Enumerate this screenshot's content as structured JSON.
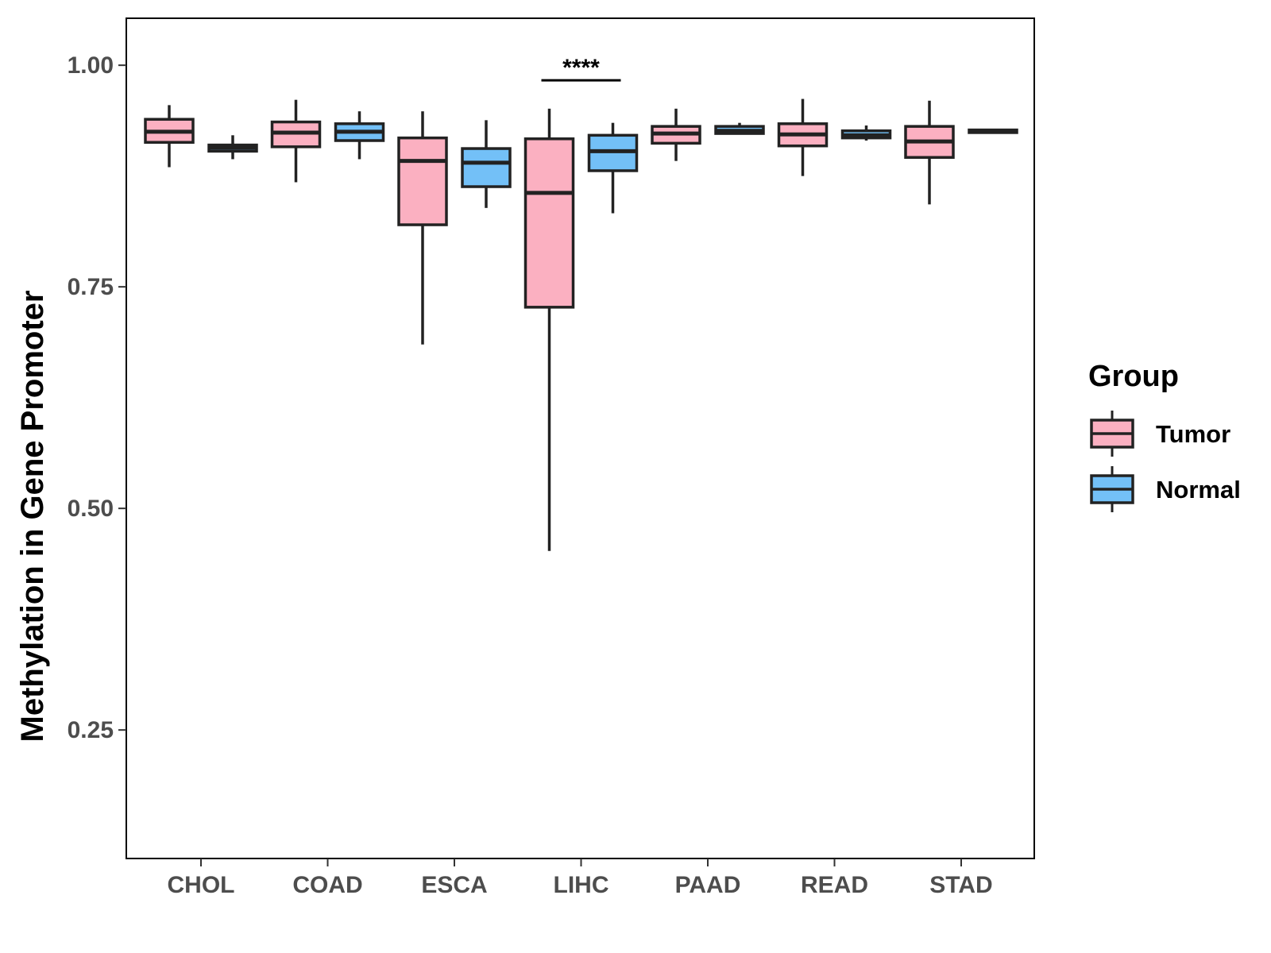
{
  "chart_data": {
    "type": "boxplot",
    "title": "",
    "xlabel": "",
    "ylabel": "Methylation in Gene Promoter",
    "ylim": [
      0.105,
      1.053
    ],
    "yticks": [
      0.25,
      0.5,
      0.75,
      1.0
    ],
    "ytick_labels": [
      "0.25",
      "0.50",
      "0.75",
      "1.00"
    ],
    "categories": [
      "CHOL",
      "COAD",
      "ESCA",
      "LIHC",
      "PAAD",
      "READ",
      "STAD"
    ],
    "legend": {
      "title": "Group",
      "position": "right",
      "entries": [
        {
          "name": "Tumor",
          "color": "#FBB0C1"
        },
        {
          "name": "Normal",
          "color": "#73C0F7"
        }
      ]
    },
    "series": [
      {
        "name": "Tumor",
        "color": "#FBB0C1",
        "boxes": [
          {
            "category": "CHOL",
            "min": 0.885,
            "q1": 0.913,
            "median": 0.925,
            "q3": 0.939,
            "max": 0.955
          },
          {
            "category": "COAD",
            "min": 0.868,
            "q1": 0.908,
            "median": 0.924,
            "q3": 0.936,
            "max": 0.961
          },
          {
            "category": "ESCA",
            "min": 0.685,
            "q1": 0.82,
            "median": 0.892,
            "q3": 0.918,
            "max": 0.948
          },
          {
            "category": "LIHC",
            "min": 0.452,
            "q1": 0.727,
            "median": 0.856,
            "q3": 0.917,
            "max": 0.951
          },
          {
            "category": "PAAD",
            "min": 0.892,
            "q1": 0.912,
            "median": 0.923,
            "q3": 0.931,
            "max": 0.951
          },
          {
            "category": "READ",
            "min": 0.875,
            "q1": 0.909,
            "median": 0.922,
            "q3": 0.934,
            "max": 0.962
          },
          {
            "category": "STAD",
            "min": 0.843,
            "q1": 0.896,
            "median": 0.914,
            "q3": 0.931,
            "max": 0.96
          }
        ]
      },
      {
        "name": "Normal",
        "color": "#73C0F7",
        "boxes": [
          {
            "category": "CHOL",
            "min": 0.894,
            "q1": 0.903,
            "median": 0.907,
            "q3": 0.91,
            "max": 0.921
          },
          {
            "category": "COAD",
            "min": 0.894,
            "q1": 0.915,
            "median": 0.925,
            "q3": 0.934,
            "max": 0.948
          },
          {
            "category": "ESCA",
            "min": 0.839,
            "q1": 0.863,
            "median": 0.89,
            "q3": 0.906,
            "max": 0.938
          },
          {
            "category": "LIHC",
            "min": 0.833,
            "q1": 0.881,
            "median": 0.903,
            "q3": 0.921,
            "max": 0.935
          },
          {
            "category": "PAAD",
            "min": 0.922,
            "q1": 0.923,
            "median": 0.926,
            "q3": 0.931,
            "max": 0.935
          },
          {
            "category": "READ",
            "min": 0.915,
            "q1": 0.918,
            "median": 0.921,
            "q3": 0.926,
            "max": 0.932
          },
          {
            "category": "STAD",
            "min": 0.923,
            "q1": 0.924,
            "median": 0.925,
            "q3": 0.927,
            "max": 0.928
          }
        ]
      }
    ],
    "annotations": [
      {
        "category": "LIHC",
        "text": "****",
        "y": 0.983
      }
    ]
  }
}
